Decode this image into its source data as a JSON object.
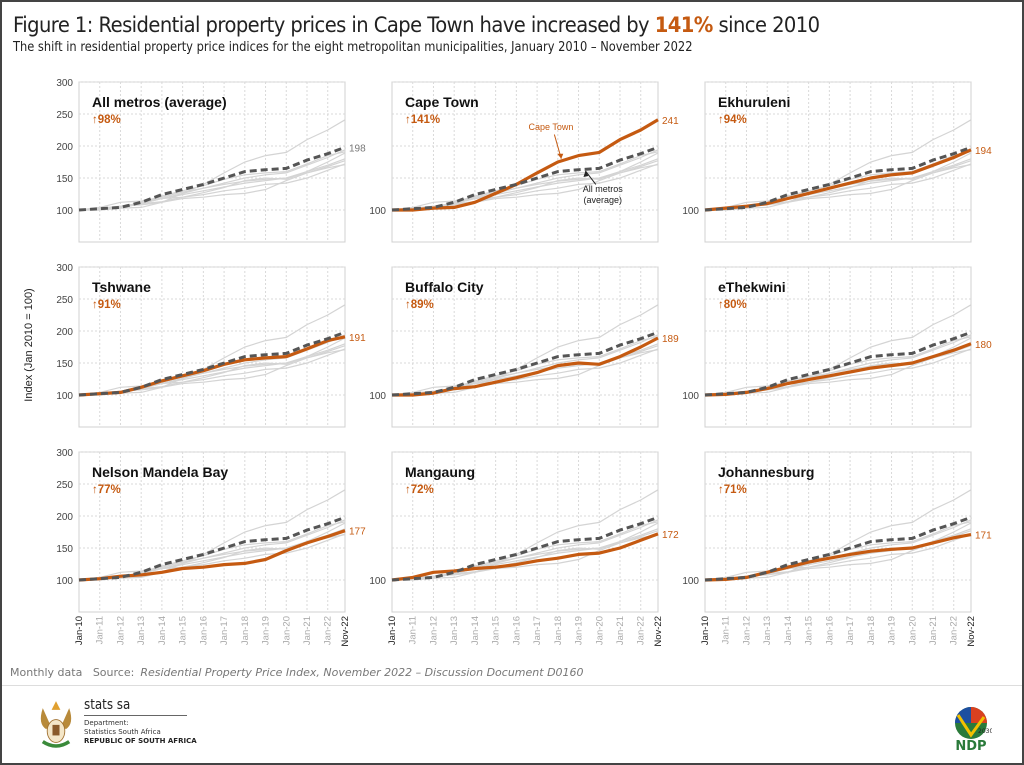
{
  "title": {
    "prefix": "Figure 1: Residential property prices in Cape Town have increased by ",
    "highlight": "141%",
    "suffix": " since 2010"
  },
  "subtitle": "The shift in residential property price indices for the eight metropolitan municipalities, January 2010 – November 2022",
  "footer": {
    "note": "Monthly data",
    "source_label": "Source:",
    "source": "Residential Property Price Index, November 2022 – Discussion Document D0160"
  },
  "branding": {
    "name": "stats sa",
    "dept1": "Department:",
    "dept2": "Statistics South Africa",
    "country": "REPUBLIC OF SOUTH AFRICA",
    "ndp": "NDP",
    "ndp_year": "2030"
  },
  "colors": {
    "accent": "#c55a11",
    "average": "#555555",
    "others": "#d4d4d4",
    "grid": "#d9d9d9"
  },
  "chart_data": {
    "type": "line",
    "ylabel": "Index (Jan 2010 = 100)",
    "ylim": [
      50,
      300
    ],
    "yticks": [
      300,
      250,
      200,
      150,
      100
    ],
    "grid": true,
    "x": [
      "Jan-10",
      "Jan-11",
      "Jan-12",
      "Jan-13",
      "Jan-14",
      "Jan-15",
      "Jan-16",
      "Jan-17",
      "Jan-18",
      "Jan-19",
      "Jan-20",
      "Jan-21",
      "Jan-22",
      "Nov-22"
    ],
    "series": [
      {
        "name": "All metros (average)",
        "values": [
          100,
          102,
          104,
          112,
          124,
          132,
          140,
          150,
          160,
          163,
          165,
          178,
          188,
          198
        ]
      },
      {
        "name": "Cape Town",
        "values": [
          100,
          100,
          103,
          104,
          112,
          126,
          140,
          158,
          175,
          185,
          190,
          210,
          225,
          241
        ]
      },
      {
        "name": "Ekhuruleni",
        "values": [
          100,
          103,
          106,
          110,
          118,
          126,
          134,
          142,
          150,
          155,
          158,
          170,
          182,
          194
        ]
      },
      {
        "name": "Tshwane",
        "values": [
          100,
          102,
          104,
          112,
          122,
          130,
          138,
          148,
          155,
          158,
          160,
          172,
          185,
          191
        ]
      },
      {
        "name": "Buffalo City",
        "values": [
          100,
          100,
          103,
          110,
          113,
          120,
          127,
          135,
          146,
          150,
          148,
          160,
          175,
          189
        ]
      },
      {
        "name": "eThekwini",
        "values": [
          100,
          101,
          104,
          110,
          118,
          124,
          130,
          136,
          142,
          146,
          150,
          160,
          170,
          180
        ]
      },
      {
        "name": "Nelson Mandela Bay",
        "values": [
          100,
          102,
          106,
          108,
          112,
          118,
          120,
          124,
          126,
          132,
          146,
          158,
          168,
          177
        ]
      },
      {
        "name": "Mangaung",
        "values": [
          100,
          104,
          112,
          114,
          118,
          120,
          124,
          130,
          134,
          140,
          142,
          150,
          162,
          172
        ]
      },
      {
        "name": "Johannesburg",
        "values": [
          100,
          101,
          104,
          112,
          120,
          128,
          134,
          140,
          145,
          148,
          150,
          158,
          166,
          171
        ]
      }
    ],
    "panels": [
      {
        "title": "All metros (average)",
        "change": "98%",
        "end_label": "198"
      },
      {
        "title": "Cape Town",
        "change": "141%",
        "end_label": "241"
      },
      {
        "title": "Ekhuruleni",
        "change": "94%",
        "end_label": "194"
      },
      {
        "title": "Tshwane",
        "change": "91%",
        "end_label": "191"
      },
      {
        "title": "Buffalo City",
        "change": "89%",
        "end_label": "189"
      },
      {
        "title": "eThekwini",
        "change": "80%",
        "end_label": "180"
      },
      {
        "title": "Nelson Mandela Bay",
        "change": "77%",
        "end_label": "177"
      },
      {
        "title": "Mangaung",
        "change": "72%",
        "end_label": "172"
      },
      {
        "title": "Johannesburg",
        "change": "71%",
        "end_label": "171"
      }
    ],
    "annotations": [
      {
        "panel": "Cape Town",
        "text": [
          "Cape Town"
        ],
        "target": "Cape Town"
      },
      {
        "panel": "Cape Town",
        "text": [
          "All metros",
          "(average)"
        ],
        "target": "All metros (average)"
      }
    ]
  }
}
